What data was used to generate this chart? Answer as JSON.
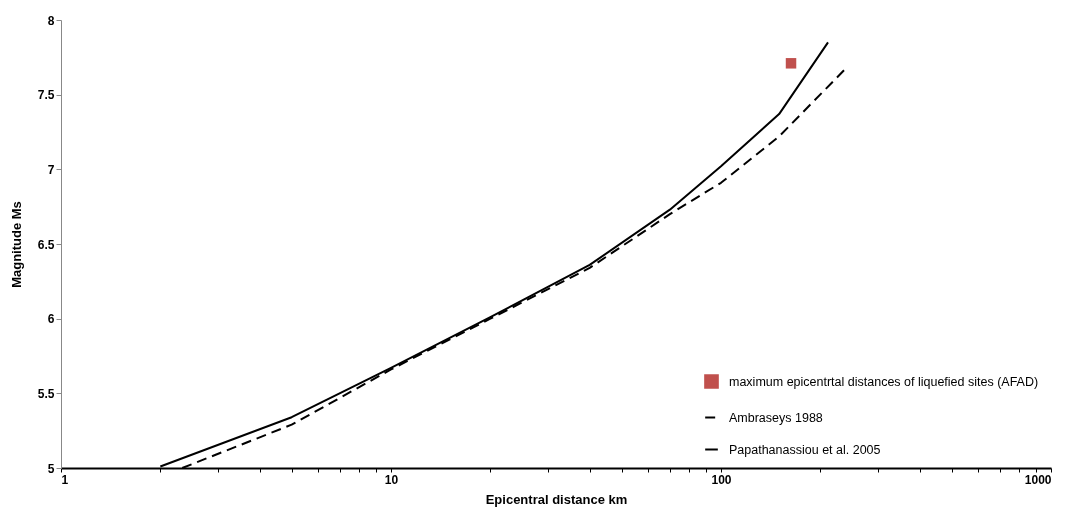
{
  "chart_data": {
    "type": "line",
    "xlabel": "Epicentral distance km",
    "ylabel": "Magnitude Ms",
    "log": "x",
    "xlim": [
      1,
      1000
    ],
    "ylim": [
      5,
      8
    ],
    "xticks": [
      1,
      {
        "value": 2,
        "label": null
      },
      {
        "value": 3,
        "label": null
      },
      {
        "value": 4,
        "label": null
      },
      {
        "value": 5,
        "label": null
      },
      {
        "value": 6,
        "label": null
      },
      {
        "value": 7,
        "label": null
      },
      {
        "value": 8,
        "label": null
      },
      {
        "value": 9,
        "label": null
      },
      10,
      {
        "value": 20,
        "label": null
      },
      {
        "value": 30,
        "label": null
      },
      {
        "value": 40,
        "label": null
      },
      {
        "value": 50,
        "label": null
      },
      {
        "value": 60,
        "label": null
      },
      {
        "value": 70,
        "label": null
      },
      {
        "value": 80,
        "label": null
      },
      {
        "value": 90,
        "label": null
      },
      100,
      {
        "value": 200,
        "label": null
      },
      {
        "value": 300,
        "label": null
      },
      {
        "value": 400,
        "label": null
      },
      {
        "value": 500,
        "label": null
      },
      {
        "value": 600,
        "label": null
      },
      {
        "value": 700,
        "label": null
      },
      {
        "value": 800,
        "label": null
      },
      {
        "value": 900,
        "label": null
      },
      1000
    ],
    "yticks": [
      5,
      5.5,
      6,
      6.5,
      7,
      7.5,
      8
    ],
    "grid": false,
    "legend": "right",
    "series": [
      {
        "name": "maximum epicentrtal distances of liquefied sites (AFAD)",
        "type": "scatter",
        "marker": "square",
        "color": "#c0504d",
        "x": [
          163
        ],
        "values": [
          7.71
        ]
      },
      {
        "name": "Ambraseys 1988",
        "line_style": "dashed",
        "color": "#000000",
        "x": [
          2.33,
          5,
          10,
          20,
          40,
          70,
          100,
          150,
          240
        ],
        "values": [
          5.0,
          5.29,
          5.66,
          6.0,
          6.34,
          6.7,
          6.91,
          7.22,
          7.68
        ]
      },
      {
        "name": "Papathanassiou et al. 2005",
        "line_style": "solid",
        "color": "#000000",
        "x": [
          2.0,
          5,
          10,
          20,
          40,
          70,
          100,
          150,
          211
        ],
        "values": [
          5.01,
          5.34,
          5.67,
          6.01,
          6.36,
          6.73,
          7.02,
          7.37,
          7.85
        ]
      }
    ]
  }
}
